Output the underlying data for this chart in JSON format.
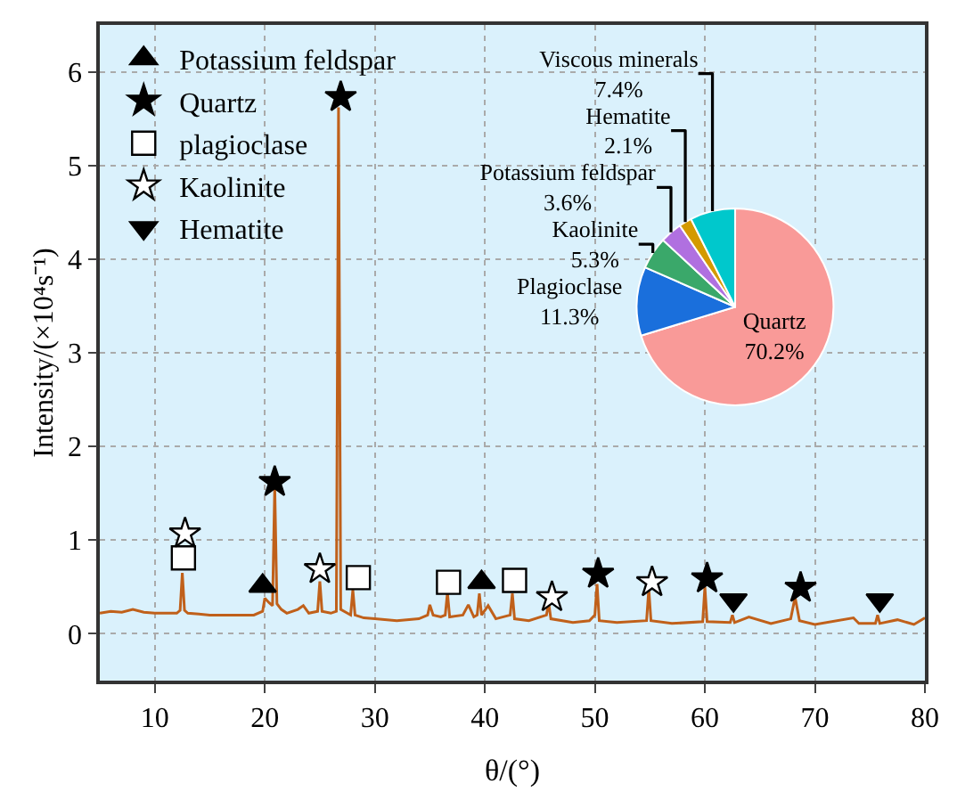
{
  "chart_data": [
    {
      "type": "line",
      "xlabel": "θ/(°)",
      "ylabel": "Intensity/(×10⁴s⁻¹)",
      "xlim": [
        5,
        80
      ],
      "ylim": [
        -0.5,
        6.5
      ],
      "xticks": [
        10,
        20,
        30,
        40,
        50,
        60,
        70,
        80
      ],
      "yticks": [
        0,
        1,
        2,
        3,
        4,
        5,
        6
      ],
      "grid": true,
      "legend": "top left",
      "series": [
        {
          "type": "line",
          "color": "#c0601a",
          "x": [
            5,
            6,
            7,
            8,
            9,
            10,
            11,
            12,
            12.3,
            12.5,
            12.7,
            13,
            14,
            15,
            16,
            17,
            18,
            19,
            19.8,
            20.0,
            20.4,
            20.7,
            20.9,
            21.1,
            21.5,
            22,
            23,
            23.5,
            24,
            24.8,
            25.0,
            25.2,
            26,
            26.5,
            26.7,
            26.9,
            27.5,
            27.8,
            28.0,
            28.2,
            29,
            30,
            32,
            34,
            34.8,
            35.0,
            35.3,
            36,
            36.4,
            36.6,
            36.8,
            38,
            38.5,
            39,
            39.3,
            39.5,
            39.7,
            40.3,
            41,
            42.3,
            42.5,
            42.7,
            44,
            45.6,
            45.8,
            46.0,
            48,
            49.5,
            50.0,
            50.2,
            50.4,
            52,
            54.7,
            54.9,
            55.1,
            57,
            59.8,
            60.0,
            60.2,
            62.3,
            62.5,
            62.7,
            64,
            66,
            67.8,
            68.2,
            68.6,
            70,
            73.5,
            74,
            75.5,
            75.7,
            75.9,
            77.5,
            79,
            80
          ],
          "values": [
            0.22,
            0.24,
            0.23,
            0.26,
            0.23,
            0.22,
            0.22,
            0.22,
            0.25,
            0.65,
            0.25,
            0.22,
            0.21,
            0.2,
            0.2,
            0.2,
            0.2,
            0.2,
            0.24,
            0.38,
            0.33,
            0.3,
            1.58,
            0.32,
            0.26,
            0.22,
            0.26,
            0.3,
            0.22,
            0.24,
            0.56,
            0.24,
            0.22,
            0.24,
            5.62,
            0.26,
            0.22,
            0.2,
            0.47,
            0.2,
            0.17,
            0.16,
            0.14,
            0.16,
            0.2,
            0.31,
            0.2,
            0.18,
            0.2,
            0.44,
            0.18,
            0.2,
            0.31,
            0.18,
            0.2,
            0.43,
            0.2,
            0.3,
            0.16,
            0.2,
            0.43,
            0.16,
            0.14,
            0.2,
            0.33,
            0.16,
            0.12,
            0.14,
            0.2,
            0.53,
            0.14,
            0.12,
            0.14,
            0.48,
            0.14,
            0.11,
            0.13,
            0.5,
            0.13,
            0.12,
            0.2,
            0.12,
            0.18,
            0.11,
            0.16,
            0.39,
            0.14,
            0.1,
            0.17,
            0.11,
            0.11,
            0.2,
            0.11,
            0.15,
            0.1,
            0.17
          ]
        },
        {
          "type": "scatter",
          "name": "Potassium feldspar",
          "marker": "triangle",
          "color": "#000000",
          "x": [
            19.8,
            39.7
          ],
          "values": [
            0.51,
            0.55
          ]
        },
        {
          "type": "scatter",
          "name": "Quartz",
          "marker": "star",
          "color": "#000000",
          "x": [
            20.9,
            26.9,
            50.3,
            60.2,
            68.7
          ],
          "values": [
            1.62,
            5.73,
            0.64,
            0.59,
            0.49
          ]
        },
        {
          "type": "scatter",
          "name": "plagioclase",
          "marker": "square",
          "color": "#ffffff",
          "x": [
            12.6,
            28.5,
            36.7,
            42.7
          ],
          "values": [
            0.81,
            0.6,
            0.55,
            0.57
          ]
        },
        {
          "type": "scatter",
          "name": "Kaolinite",
          "marker": "star",
          "color": "#ffffff",
          "x": [
            12.75,
            25.0,
            46.1,
            55.2
          ],
          "values": [
            1.07,
            0.69,
            0.39,
            0.55
          ]
        },
        {
          "type": "scatter",
          "name": "Hematite",
          "marker": "triangle-down",
          "color": "#000000",
          "x": [
            62.6,
            75.9
          ],
          "values": [
            0.36,
            0.36
          ]
        }
      ]
    },
    {
      "type": "pie",
      "categories": [
        "Quartz",
        "Plagioclase",
        "Kaolinite",
        "Potassium feldspar",
        "Hematite",
        "Viscous minerals"
      ],
      "values": [
        70.2,
        11.3,
        5.3,
        3.6,
        2.1,
        7.4
      ],
      "value_labels": [
        "70.2%",
        "11.3%",
        "5.3%",
        "3.6%",
        "2.1%",
        "7.4%"
      ],
      "colors": [
        "#f99a98",
        "#1a6fdc",
        "#3aa86a",
        "#b070e0",
        "#d49a00",
        "#00c8cc"
      ]
    }
  ]
}
